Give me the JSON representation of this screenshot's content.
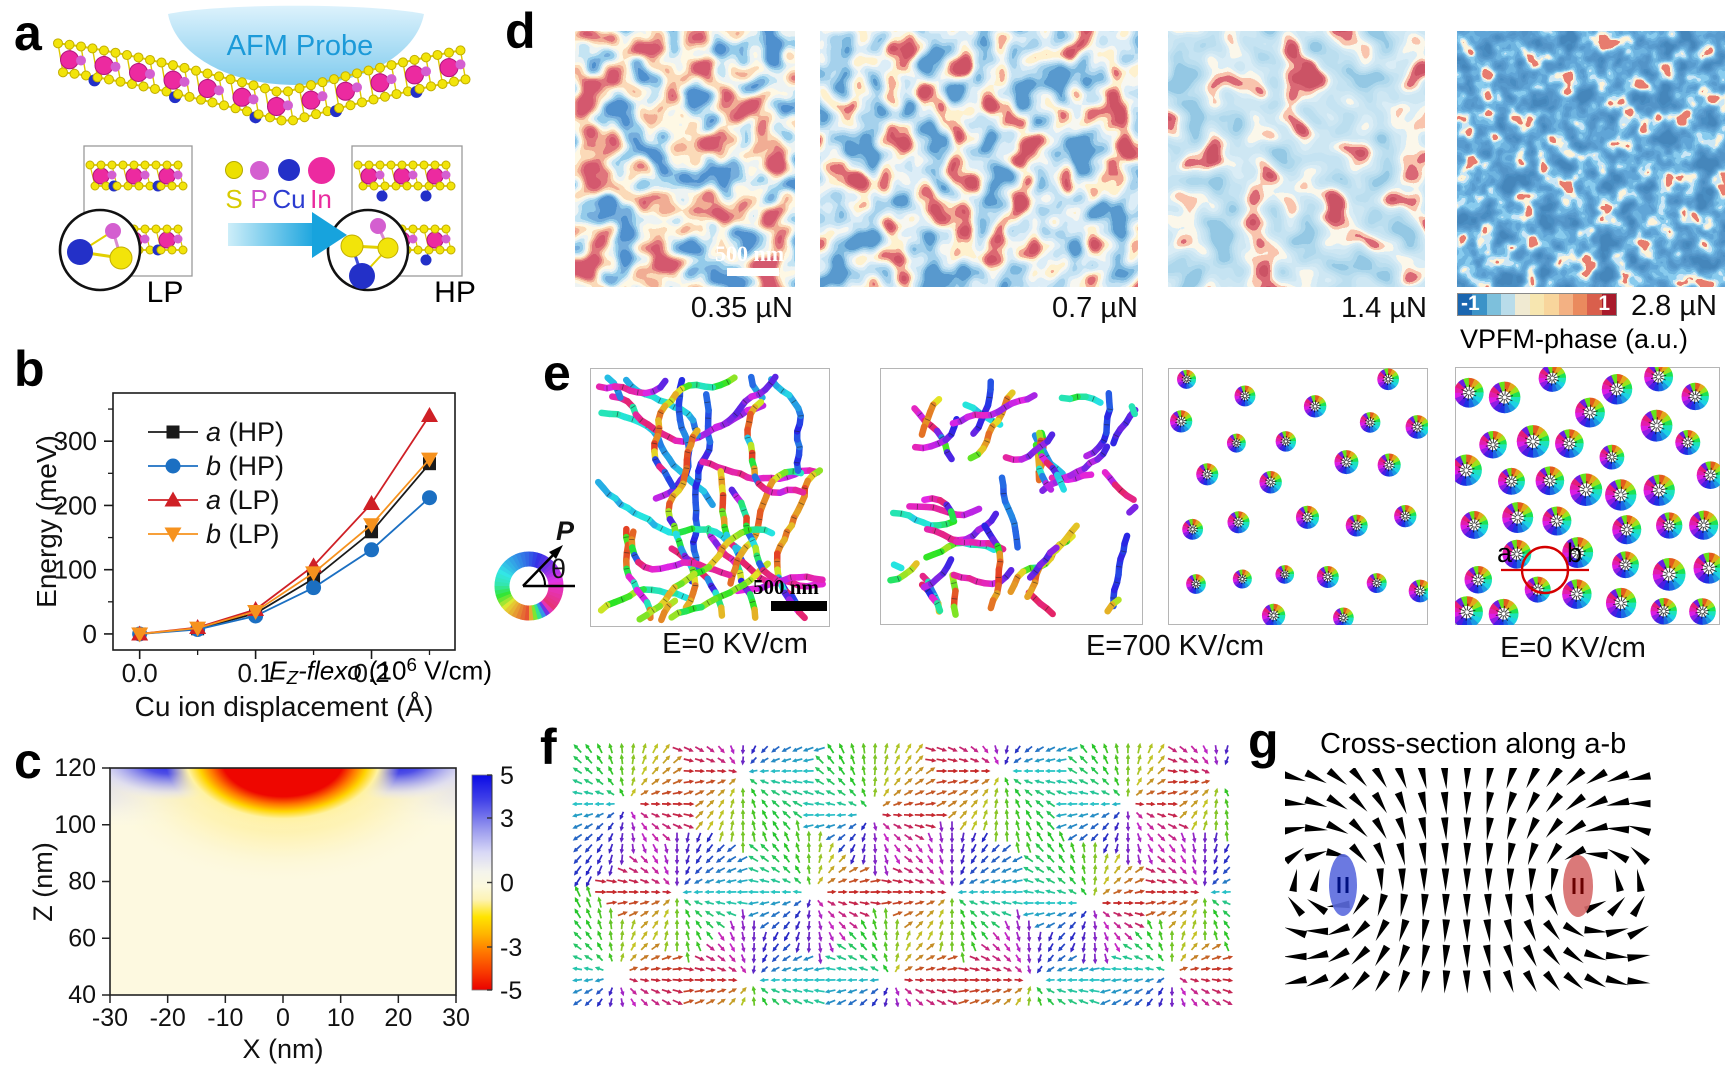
{
  "figure": {
    "background": "#ffffff"
  },
  "panels": {
    "a": {
      "label": "a",
      "probe_label": "AFM Probe",
      "legend": [
        {
          "name": "S",
          "color": "#d8ca00",
          "dot_color": "#ece000"
        },
        {
          "name": "P",
          "color": "#cf52cc",
          "dot_color": "#d45fd0"
        },
        {
          "name": "Cu",
          "color": "#2b3bd0",
          "dot_color": "#2330c8"
        },
        {
          "name": "In",
          "color": "#ea2a9e",
          "dot_color": "#ec2aa0"
        }
      ],
      "lp_label": "LP",
      "hp_label": "HP"
    },
    "b": {
      "label": "b"
    },
    "c": {
      "label": "c",
      "title": {
        "pre": "E",
        "sub": "Z",
        "mid": "-flexo",
        "unit_open": " (10",
        "exp": "6",
        "unit_close": " V/cm)"
      }
    },
    "d": {
      "label": "d",
      "captions": [
        "0.35 µN",
        "0.7 µN",
        "1.4 µN",
        "2.8 µN"
      ],
      "scalebar": "500 nm",
      "colorbar": {
        "min_label": "-1",
        "max_label": "1",
        "title": "VPFM-phase (a.u.)"
      }
    },
    "e": {
      "label": "e",
      "wheel": {
        "p": "P",
        "theta": "θ"
      },
      "scalebar": "500 nm",
      "captions": [
        "E=0 KV/cm",
        "E=700 KV/cm",
        "E=0 KV/cm"
      ],
      "marker_a": "a",
      "marker_b": "b"
    },
    "f": {
      "label": "f"
    },
    "g": {
      "label": "g",
      "title": "Cross-section along a-b"
    }
  },
  "chart_data": [
    {
      "type": "line",
      "panel": "b",
      "title": "",
      "xlabel": "Cu ion displacement (Å)",
      "ylabel": "Energy (meV)",
      "x": [
        0.0,
        0.05,
        0.1,
        0.15,
        0.2,
        0.25
      ],
      "xticks": [
        0.0,
        0.1,
        0.2
      ],
      "xtick_labels": [
        "0.0",
        "0.1",
        "0.2"
      ],
      "xminor": [
        0.05,
        0.15,
        0.25
      ],
      "yticks": [
        0,
        100,
        200,
        300
      ],
      "yminor": [
        50,
        150,
        250,
        350
      ],
      "xlim": [
        -0.023,
        0.272
      ],
      "ylim": [
        -25,
        375
      ],
      "grid": false,
      "legend_position": "top-left",
      "series": [
        {
          "name": "a (HP)",
          "label_var": "a",
          "label_rest": " (HP)",
          "marker": "square",
          "color": "#1a1a1a",
          "values": [
            0,
            8,
            32,
            86,
            159,
            265
          ]
        },
        {
          "name": "b (HP)",
          "label_var": "b",
          "label_rest": " (HP)",
          "marker": "circle",
          "color": "#1b6fc2",
          "values": [
            0,
            7,
            28,
            72,
            131,
            212
          ]
        },
        {
          "name": "a (LP)",
          "label_var": "a",
          "label_rest": " (LP)",
          "marker": "triangle-up",
          "color": "#cf2026",
          "values": [
            0,
            10,
            38,
            106,
            203,
            340
          ]
        },
        {
          "name": "b (LP)",
          "label_var": "b",
          "label_rest": " (LP)",
          "marker": "triangle-down",
          "color": "#f6921e",
          "values": [
            0,
            9,
            35,
            95,
            170,
            272
          ]
        }
      ]
    },
    {
      "type": "heatmap",
      "panel": "c",
      "title": "E_Z-flexo (10^6 V/cm)",
      "xlabel": "X (nm)",
      "ylabel": "Z (nm)",
      "xticks": [
        -30,
        -20,
        -10,
        0,
        10,
        20,
        30
      ],
      "yticks": [
        40,
        60,
        80,
        100,
        120
      ],
      "xlim": [
        -30,
        30
      ],
      "ylim": [
        40,
        120
      ],
      "colorbar_range": [
        -5,
        5
      ],
      "colorbar_ticks": [
        5,
        3,
        0,
        -3,
        -5
      ],
      "features": "strong negative (red, ~-5) lobe under tip centered at X=0 for Z>100 nm and |X|<13 nm, ringed by yellow halo down to Z~85 nm; positive (blue, ~+5) lobes at top corners |X|>15 nm near Z=120 nm; near-zero pale cream elsewhere"
    }
  ]
}
